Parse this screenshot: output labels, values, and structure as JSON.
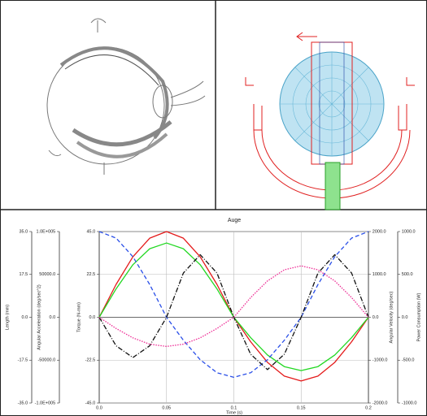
{
  "chart_data": {
    "type": "line",
    "title": "Auge",
    "xlabel": "Time (s)",
    "x": [
      0,
      0.0125,
      0.025,
      0.0375,
      0.05,
      0.0625,
      0.075,
      0.0875,
      0.1,
      0.1125,
      0.125,
      0.1375,
      0.15,
      0.1625,
      0.175,
      0.1875,
      0.2
    ],
    "xlim": [
      0,
      0.2
    ],
    "xticks": [
      {
        "value": 0,
        "label": "0.0"
      },
      0.05,
      0.1,
      0.15,
      0.2
    ],
    "grid": true,
    "axes": [
      {
        "label": "Length (mm)",
        "lim": [
          -35,
          35
        ],
        "ticks": [
          {
            "value": -35,
            "label": "-35.0"
          },
          {
            "value": -17.5,
            "label": "-17.5"
          },
          {
            "value": 0,
            "label": "0.0"
          },
          {
            "value": 17.5,
            "label": "17.5"
          },
          {
            "value": 35,
            "label": "35.0"
          }
        ]
      },
      {
        "label": "Angular Acceleration (deg/sec^2)",
        "lim": [
          -100000,
          100000
        ],
        "ticks": [
          {
            "value": -100000,
            "label": "-1.0E+005"
          },
          {
            "value": -50000,
            "label": "-50000.0"
          },
          {
            "value": 0,
            "label": "0.0"
          },
          {
            "value": 50000,
            "label": "50000.0"
          },
          {
            "value": 100000,
            "label": "1.0E+005"
          }
        ]
      },
      {
        "label": "Torque (N-mm)",
        "lim": [
          -45,
          45
        ],
        "ticks": [
          {
            "value": -45,
            "label": "-45.0"
          },
          {
            "value": -22.5,
            "label": "-22.5"
          },
          {
            "value": 0,
            "label": "0.0"
          },
          {
            "value": 22.5,
            "label": "22.5"
          },
          {
            "value": 45,
            "label": "45.0"
          }
        ]
      },
      {
        "label": "Angular Velocity (deg/sec)",
        "lim": [
          -2000,
          2000
        ],
        "ticks": [
          {
            "value": -2000,
            "label": "-2000.0"
          },
          {
            "value": -1000,
            "label": "-1000.0"
          },
          {
            "value": 0,
            "label": "0.0"
          },
          {
            "value": 1000,
            "label": "1000.0"
          },
          {
            "value": 2000,
            "label": "2000.0"
          }
        ]
      },
      {
        "label": "Power Consumption (W)",
        "lim": [
          -1000,
          1000
        ],
        "ticks": [
          {
            "value": -1000,
            "label": "-1000.0"
          },
          {
            "value": -500,
            "label": "-500.0"
          },
          {
            "value": 0,
            "label": "0.0"
          },
          {
            "value": 500,
            "label": "500.0"
          },
          {
            "value": 1000,
            "label": "1000.0"
          }
        ]
      }
    ],
    "series": [
      {
        "axis": 0,
        "color": "#e41a1a",
        "dash": "none",
        "values": [
          0,
          13.4,
          24.7,
          32.3,
          35,
          32.3,
          24.7,
          13.4,
          0,
          -10.0,
          -18.4,
          -24.0,
          -26,
          -24.0,
          -18.4,
          -10.0,
          0
        ]
      },
      {
        "axis": 2,
        "color": "#22d822",
        "dash": "none",
        "values": [
          0,
          14.9,
          27.6,
          36.0,
          39,
          36.0,
          27.6,
          14.9,
          0,
          -10.7,
          -19.8,
          -25.9,
          -28,
          -25.9,
          -19.8,
          -10.7,
          0
        ]
      },
      {
        "axis": 3,
        "color": "#2a4fe8",
        "dash": "5 3",
        "values": [
          2000,
          1848,
          1414,
          765,
          0,
          -536,
          -990,
          -1294,
          -1400,
          -1294,
          -990,
          -536,
          0,
          765,
          1414,
          1848,
          2000
        ]
      },
      {
        "axis": 1,
        "color": "#111111",
        "dash": "6 2 1 2",
        "values": [
          0,
          -33234,
          -47000,
          -33234,
          0,
          51611,
          73000,
          51611,
          0,
          -43134,
          -61000,
          -43134,
          0,
          51611,
          73000,
          51611,
          0
        ]
      },
      {
        "axis": 4,
        "color": "#ee2b95",
        "dash": "1.5 1.5",
        "values": [
          0,
          -130,
          -240,
          -314,
          -340,
          -314,
          -240,
          -130,
          0,
          230,
          424,
          554,
          600,
          554,
          424,
          230,
          0
        ]
      }
    ]
  }
}
